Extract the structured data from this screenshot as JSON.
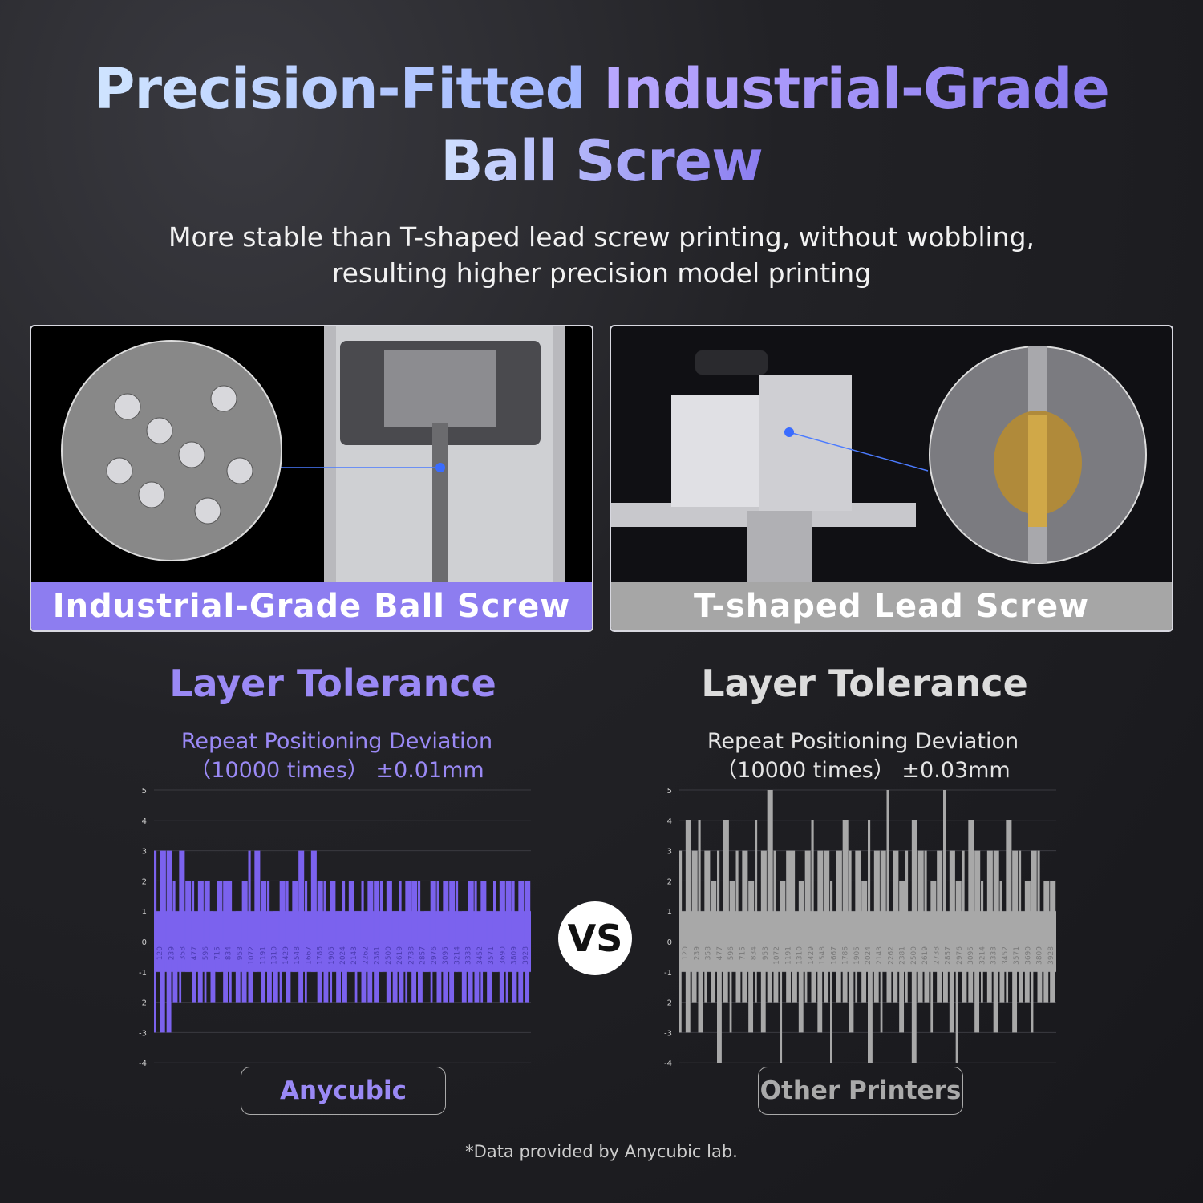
{
  "header": {
    "title_part1": "Precision-Fitted ",
    "title_part2": "Industrial-Grade",
    "title_line2": "Ball Screw",
    "subtitle_line1": "More stable than T-shaped lead screw printing, without wobbling,",
    "subtitle_line2": "resulting higher precision model printing"
  },
  "panels": [
    {
      "label": "Industrial-Grade Ball Screw"
    },
    {
      "label": "T-shaped Lead Screw"
    }
  ],
  "vs_label": "VS",
  "footnote": "*Data provided by Anycubic lab.",
  "colors": {
    "accent": "#8d7df0",
    "gray": "#a6a6a6"
  },
  "chart_data": [
    {
      "type": "bar",
      "title": "Layer Tolerance",
      "subtitle_line1": "Repeat Positioning Deviation",
      "subtitle_line2": "（10000 times） ±0.01mm",
      "legend": "Anycubic",
      "color": "#7b62ee",
      "ylim": [
        -4,
        5
      ],
      "yticks": [
        5,
        4,
        3,
        2,
        1,
        0,
        -1,
        -2,
        -3,
        -4
      ],
      "xticks": [
        120,
        239,
        358,
        477,
        596,
        715,
        834,
        953,
        1072,
        1191,
        1310,
        1429,
        1548,
        1667,
        1786,
        1905,
        2024,
        2143,
        2262,
        2381,
        2500,
        2619,
        2738,
        2857,
        2976,
        3095,
        3214,
        3333,
        3452,
        3571,
        3690,
        3809,
        3928
      ],
      "highs": [
        3,
        3,
        3,
        2,
        3,
        2,
        2,
        2,
        2,
        1,
        2,
        2,
        2,
        1,
        2,
        3,
        3,
        2,
        2,
        1,
        2,
        2,
        2,
        3,
        2,
        3,
        2,
        2,
        2,
        1,
        2,
        2,
        1,
        2,
        2,
        2,
        2,
        2,
        1,
        2,
        2,
        2,
        2,
        1,
        2,
        2,
        2,
        2,
        2,
        1,
        2,
        2,
        2,
        1,
        2,
        2,
        2,
        2,
        2,
        2
      ],
      "lows": [
        -3,
        -3,
        -3,
        -2,
        -2,
        -1,
        -2,
        -2,
        -2,
        -2,
        -1,
        -2,
        -2,
        -2,
        -2,
        -2,
        -1,
        -2,
        -2,
        -2,
        -2,
        -2,
        -1,
        -2,
        -2,
        -1,
        -2,
        -2,
        -2,
        -2,
        -2,
        -1,
        -2,
        -2,
        -2,
        -2,
        -1,
        -2,
        -2,
        -2,
        -2,
        -2,
        -2,
        -1,
        -2,
        -2,
        -2,
        -2,
        -1,
        -2,
        -2,
        -2,
        -2,
        -2,
        -1,
        -2,
        -2,
        -2,
        -2,
        -2
      ]
    },
    {
      "type": "bar",
      "title": "Layer Tolerance",
      "subtitle_line1": "Repeat Positioning Deviation",
      "subtitle_line2": "（10000 times） ±0.03mm",
      "legend": "Other Printers",
      "color": "#a8a8a8",
      "ylim": [
        -4,
        5
      ],
      "yticks": [
        5,
        4,
        3,
        2,
        1,
        0,
        -1,
        -2,
        -3,
        -4
      ],
      "xticks": [
        120,
        239,
        358,
        477,
        596,
        715,
        834,
        953,
        1072,
        1191,
        1310,
        1429,
        1548,
        1667,
        1786,
        1905,
        2024,
        2143,
        2262,
        2381,
        2500,
        2619,
        2738,
        2857,
        2976,
        3095,
        3214,
        3333,
        3452,
        3571,
        3690,
        3809,
        3928
      ],
      "highs": [
        3,
        4,
        3,
        4,
        3,
        2,
        3,
        4,
        2,
        3,
        3,
        2,
        4,
        3,
        5,
        3,
        2,
        3,
        3,
        2,
        3,
        4,
        3,
        3,
        2,
        3,
        4,
        3,
        3,
        2,
        4,
        3,
        3,
        5,
        3,
        2,
        3,
        4,
        3,
        3,
        2,
        3,
        5,
        3,
        2,
        3,
        4,
        3,
        2,
        3,
        3,
        2,
        4,
        3,
        3,
        2,
        3,
        3,
        2,
        2
      ],
      "lows": [
        -3,
        -3,
        -2,
        -3,
        -2,
        -2,
        -4,
        -2,
        -3,
        -2,
        -2,
        -3,
        -2,
        -3,
        -2,
        -2,
        -4,
        -2,
        -2,
        -3,
        -2,
        -2,
        -3,
        -2,
        -4,
        -2,
        -2,
        -3,
        -2,
        -2,
        -4,
        -2,
        -3,
        -2,
        -2,
        -3,
        -2,
        -4,
        -2,
        -2,
        -3,
        -2,
        -2,
        -3,
        -4,
        -2,
        -2,
        -3,
        -2,
        -2,
        -3,
        -2,
        -2,
        -3,
        -2,
        -2,
        -3,
        -2,
        -2,
        -2
      ]
    }
  ]
}
